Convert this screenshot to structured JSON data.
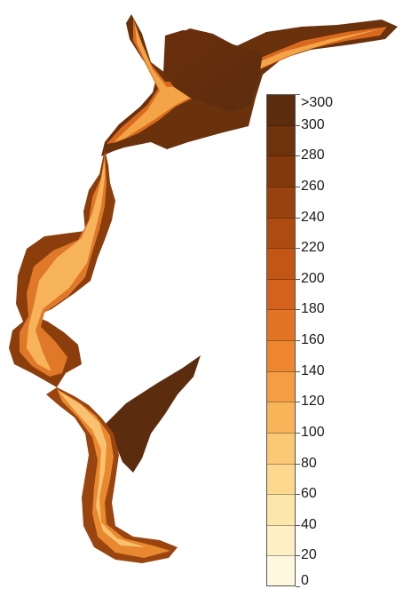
{
  "legend": {
    "labels": [
      ">300",
      "300",
      "280",
      "260",
      "240",
      "220",
      "200",
      "180",
      "160",
      "140",
      "120",
      "100",
      "80",
      "60",
      "40",
      "20",
      "0"
    ],
    "colors": [
      "#5c2c0e",
      "#6e330d",
      "#83390c",
      "#99420d",
      "#ae4b10",
      "#c35515",
      "#d4621c",
      "#e37325",
      "#ee8630",
      "#f59d42",
      "#f9b45a",
      "#fbc874",
      "#fcd98f",
      "#fde6aa",
      "#fef0c4",
      "#fff8df"
    ]
  }
}
